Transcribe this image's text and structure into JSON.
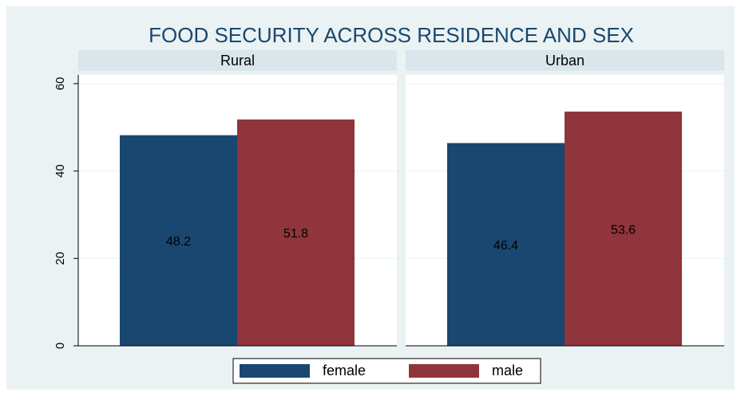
{
  "chart_data": {
    "type": "bar",
    "title": "FOOD SECURITY ACROSS RESIDENCE AND SEX",
    "categories": [
      "Rural",
      "Urban"
    ],
    "series": [
      {
        "name": "female",
        "color": "#1a476f",
        "values": [
          48.2,
          46.4
        ]
      },
      {
        "name": "male",
        "color": "#90353b",
        "values": [
          51.8,
          53.6
        ]
      }
    ],
    "ylim": [
      0,
      62
    ],
    "yticks": [
      0,
      20,
      40,
      60
    ],
    "grid": true,
    "legend": "bottom"
  }
}
